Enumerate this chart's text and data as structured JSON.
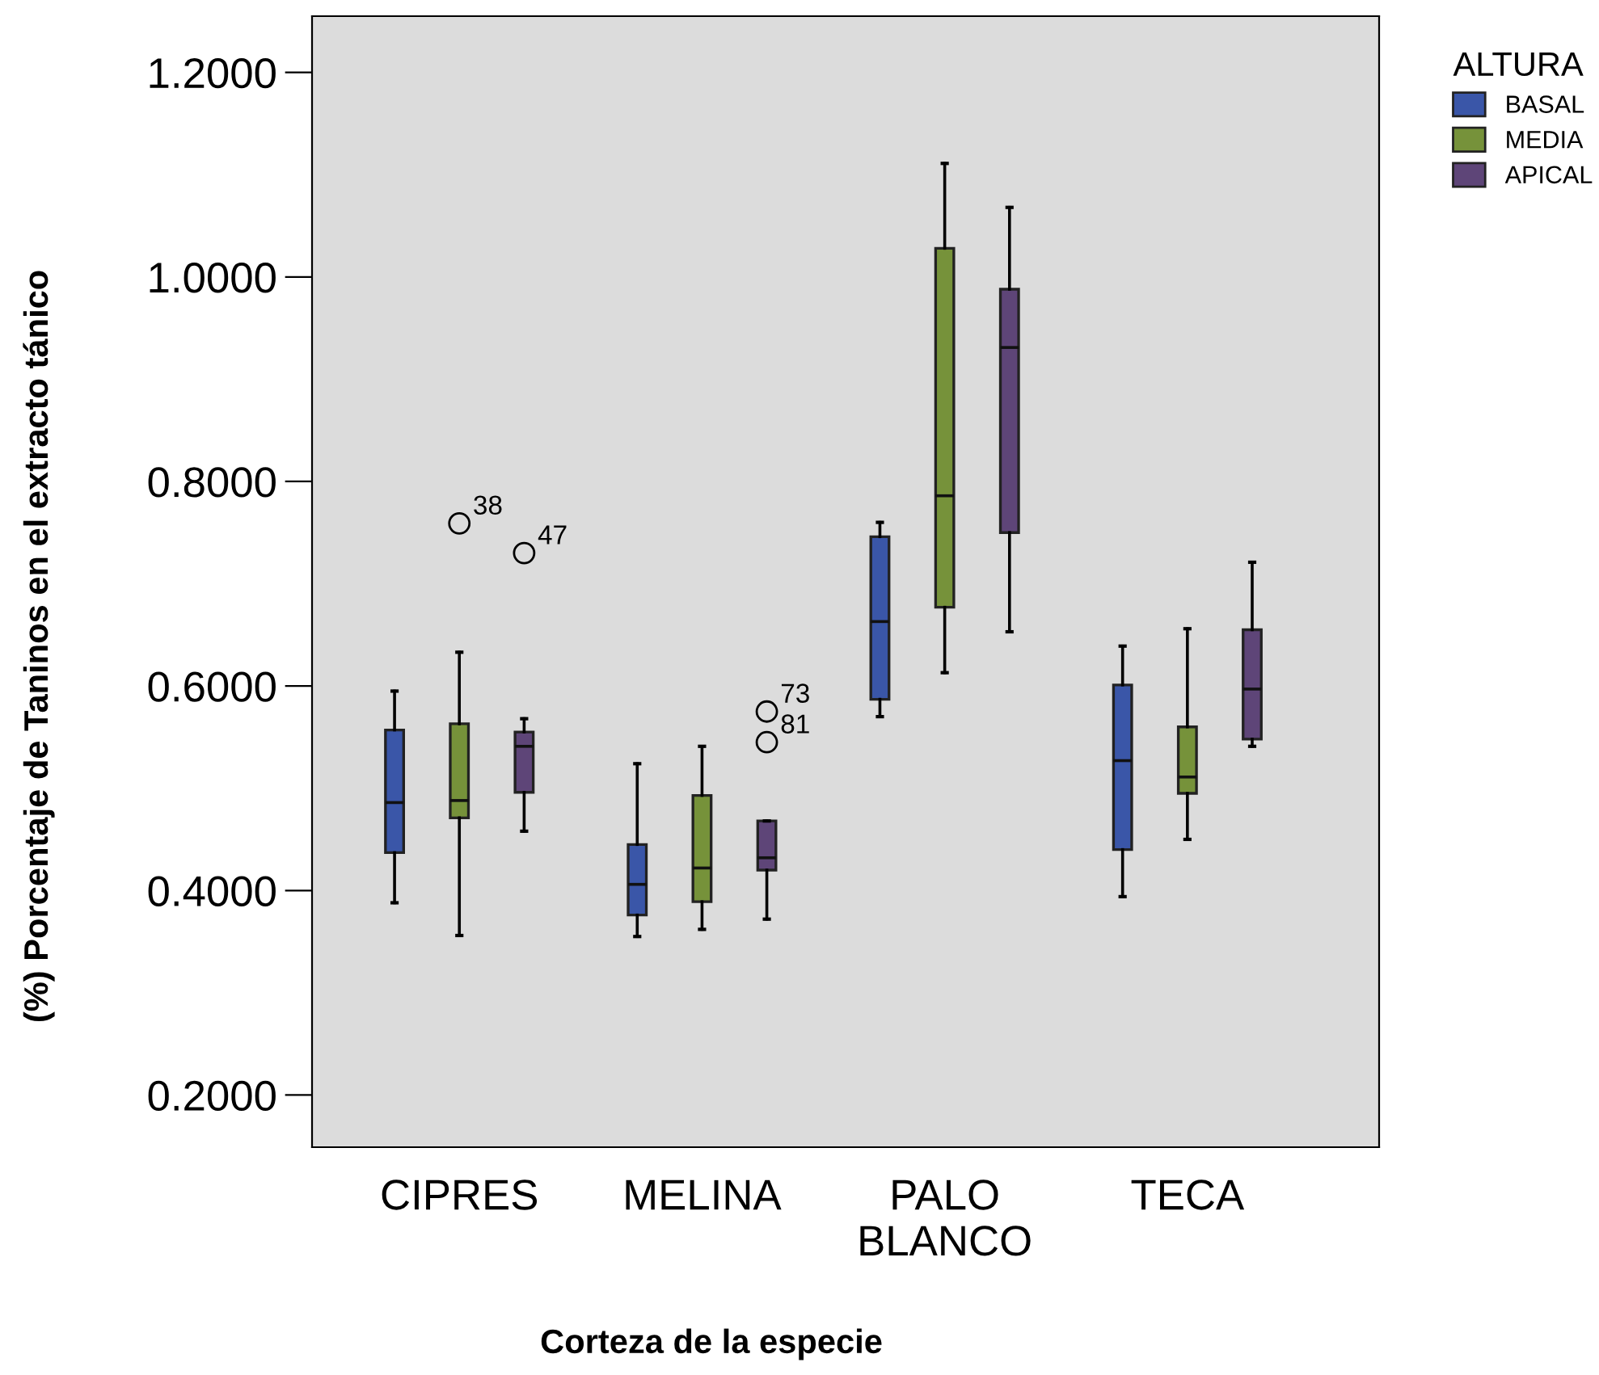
{
  "chart_data": {
    "type": "box",
    "xlabel": "Corteza de la especie",
    "ylabel": "(%) Porcentaje de Taninos en el extracto tánico",
    "legend_title": "ALTURA",
    "legend": "top right",
    "categories": [
      "CIPRES",
      "MELINA",
      "PALO\nBLANCO",
      "TECA"
    ],
    "ylim": [
      0.149,
      1.255
    ],
    "yticks": [
      {
        "value": 0.2,
        "label": "0.2000"
      },
      {
        "value": 0.4,
        "label": "0.4000"
      },
      {
        "value": 0.6,
        "label": "0.6000"
      },
      {
        "value": 0.8,
        "label": "0.8000"
      },
      {
        "value": 1.0,
        "label": "1.0000"
      },
      {
        "value": 1.2,
        "label": "1.2000"
      }
    ],
    "grid": false,
    "series": [
      {
        "name": "BASAL",
        "color": "#3a56a8",
        "boxes": [
          {
            "low": 0.388,
            "q1": 0.437,
            "median": 0.486,
            "q3": 0.557,
            "high": 0.595
          },
          {
            "low": 0.355,
            "q1": 0.376,
            "median": 0.406,
            "q3": 0.445,
            "high": 0.524
          },
          {
            "low": 0.57,
            "q1": 0.587,
            "median": 0.663,
            "q3": 0.746,
            "high": 0.76
          },
          {
            "low": 0.394,
            "q1": 0.44,
            "median": 0.527,
            "q3": 0.601,
            "high": 0.639
          }
        ]
      },
      {
        "name": "MEDIA",
        "color": "#76923a",
        "boxes": [
          {
            "low": 0.356,
            "q1": 0.471,
            "median": 0.488,
            "q3": 0.563,
            "high": 0.633,
            "outliers": [
              0.759
            ]
          },
          {
            "low": 0.362,
            "q1": 0.389,
            "median": 0.422,
            "q3": 0.493,
            "high": 0.541
          },
          {
            "low": 0.613,
            "q1": 0.677,
            "median": 0.786,
            "q3": 1.028,
            "high": 1.111
          },
          {
            "low": 0.45,
            "q1": 0.495,
            "median": 0.511,
            "q3": 0.56,
            "high": 0.656
          }
        ]
      },
      {
        "name": "APICAL",
        "color": "#5e4578",
        "boxes": [
          {
            "low": 0.458,
            "q1": 0.496,
            "median": 0.541,
            "q3": 0.555,
            "high": 0.568,
            "outliers": [
              0.73
            ]
          },
          {
            "low": 0.372,
            "q1": 0.42,
            "median": 0.432,
            "q3": 0.468,
            "high": 0.468,
            "outliers": [
              0.575,
              0.545
            ]
          },
          {
            "low": 0.653,
            "q1": 0.75,
            "median": 0.931,
            "q3": 0.988,
            "high": 1.068
          },
          {
            "low": 0.541,
            "q1": 0.548,
            "median": 0.597,
            "q3": 0.655,
            "high": 0.721
          }
        ]
      }
    ],
    "annotations": [
      "38",
      "47",
      "73",
      "81"
    ]
  }
}
